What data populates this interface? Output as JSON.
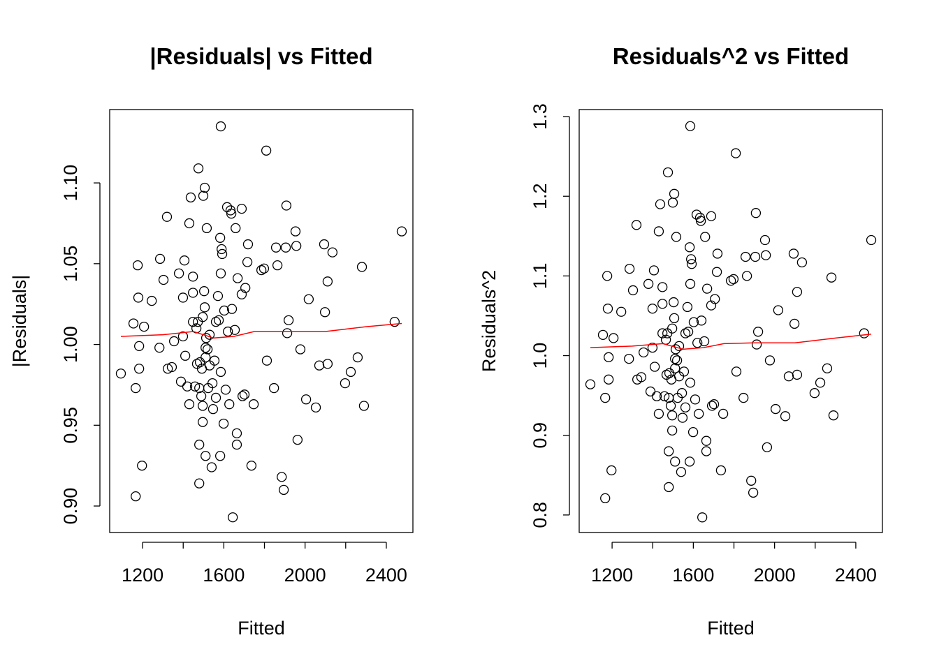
{
  "chart_data": [
    {
      "type": "scatter",
      "title": "|Residuals| vs Fitted",
      "xlabel": "Fitted",
      "ylabel": "|Residuals|",
      "point_color": "#000000",
      "x": [
        1093,
        1155,
        1166,
        1176,
        1183,
        1179,
        1183,
        1197,
        1207,
        1166,
        1245,
        1283,
        1286,
        1303,
        1320,
        1324,
        1344,
        1355,
        1379,
        1389,
        1399,
        1399,
        1406,
        1410,
        1420,
        1430,
        1437,
        1430,
        1448,
        1448,
        1448,
        1458,
        1465,
        1468,
        1472,
        1475,
        1479,
        1479,
        1479,
        1482,
        1489,
        1492,
        1496,
        1496,
        1496,
        1499,
        1503,
        1506,
        1506,
        1510,
        1510,
        1510,
        1513,
        1516,
        1520,
        1523,
        1530,
        1530,
        1540,
        1544,
        1547,
        1554,
        1561,
        1561,
        1571,
        1575,
        1582,
        1582,
        1585,
        1585,
        1585,
        1589,
        1592,
        1599,
        1602,
        1609,
        1616,
        1620,
        1627,
        1633,
        1637,
        1640,
        1644,
        1654,
        1658,
        1664,
        1664,
        1668,
        1688,
        1688,
        1692,
        1702,
        1706,
        1716,
        1719,
        1736,
        1747,
        1785,
        1798,
        1809,
        1812,
        1847,
        1857,
        1864,
        1885,
        1895,
        1905,
        1908,
        1912,
        1919,
        1957,
        1963,
        1953,
        1977,
        2005,
        2018,
        2053,
        2070,
        2094,
        2098,
        2111,
        2111,
        2135,
        2197,
        2225,
        2259,
        2280,
        2290,
        2441,
        2476
      ],
      "y": [
        0.982,
        1.013,
        0.973,
        1.049,
        0.985,
        1.029,
        0.999,
        0.925,
        1.011,
        0.906,
        1.027,
        0.998,
        1.053,
        1.04,
        1.079,
        0.985,
        0.986,
        1.002,
        1.044,
        0.977,
        1.005,
        1.029,
        1.052,
        0.993,
        0.974,
        0.963,
        1.091,
        1.075,
        1.014,
        1.042,
        1.032,
        0.974,
        1.01,
        0.988,
        1.014,
        1.109,
        0.938,
        0.914,
        0.973,
        0.989,
        0.968,
        0.985,
        0.952,
        1.017,
        0.962,
        1.092,
        1.033,
        1.097,
        1.023,
        0.931,
        0.998,
        0.992,
        1.004,
        1.072,
        0.997,
        0.973,
        1.006,
        0.987,
        0.924,
        0.976,
        0.96,
        0.99,
        0.967,
        1.014,
        1.03,
        1.015,
        0.931,
        1.066,
        1.044,
        0.983,
        1.135,
        1.059,
        1.056,
        0.951,
        1.021,
        0.972,
        1.085,
        1.008,
        0.963,
        1.083,
        1.081,
        1.022,
        0.893,
        1.009,
        1.072,
        0.945,
        0.938,
        1.041,
        1.084,
        1.031,
        0.968,
        0.969,
        1.035,
        1.051,
        1.062,
        0.925,
        0.963,
        1.046,
        1.047,
        1.12,
        0.99,
        0.973,
        1.06,
        1.049,
        0.918,
        0.91,
        1.06,
        1.086,
        1.007,
        1.015,
        1.061,
        0.941,
        1.07,
        0.997,
        0.966,
        1.028,
        0.961,
        0.987,
        1.062,
        1.02,
        1.039,
        0.988,
        1.057,
        0.976,
        0.983,
        0.992,
        1.048,
        0.962,
        1.014,
        1.07
      ],
      "smooth": {
        "color": "#ff0000",
        "x": [
          1093,
          1300,
          1450,
          1550,
          1650,
          1750,
          1900,
          2100,
          2300,
          2476
        ],
        "y": [
          1.005,
          1.006,
          1.008,
          1.004,
          1.005,
          1.008,
          1.008,
          1.008,
          1.011,
          1.013
        ]
      },
      "xlim": [
        1038,
        2531
      ],
      "ylim": [
        0.8836,
        1.1454
      ],
      "xticks": [
        1200,
        {
          "value": 1400,
          "label": null
        },
        1600,
        {
          "value": 1800,
          "label": null
        },
        2000,
        {
          "value": 2200,
          "label": null
        },
        2400
      ],
      "yticks": [
        {
          "value": 0.9,
          "label": "0.90"
        },
        0.95,
        {
          "value": 1.0,
          "label": "1.00"
        },
        1.05,
        {
          "value": 1.1,
          "label": "1.10"
        }
      ]
    },
    {
      "type": "scatter",
      "title": "Residuals^2 vs Fitted",
      "xlabel": "Fitted",
      "ylabel": "Residuals^2",
      "point_color": "#000000",
      "x": [
        1093,
        1155,
        1166,
        1176,
        1183,
        1179,
        1183,
        1197,
        1207,
        1166,
        1245,
        1283,
        1286,
        1303,
        1320,
        1324,
        1344,
        1355,
        1379,
        1389,
        1399,
        1399,
        1406,
        1410,
        1420,
        1430,
        1437,
        1430,
        1448,
        1448,
        1448,
        1458,
        1465,
        1468,
        1472,
        1475,
        1479,
        1479,
        1479,
        1482,
        1489,
        1492,
        1496,
        1496,
        1496,
        1499,
        1503,
        1506,
        1506,
        1510,
        1510,
        1510,
        1513,
        1516,
        1520,
        1523,
        1530,
        1530,
        1540,
        1544,
        1547,
        1554,
        1561,
        1561,
        1571,
        1575,
        1582,
        1582,
        1585,
        1585,
        1585,
        1589,
        1592,
        1599,
        1602,
        1609,
        1616,
        1620,
        1627,
        1633,
        1637,
        1640,
        1644,
        1654,
        1658,
        1664,
        1664,
        1668,
        1688,
        1688,
        1692,
        1702,
        1706,
        1716,
        1719,
        1736,
        1747,
        1785,
        1798,
        1809,
        1812,
        1847,
        1857,
        1864,
        1885,
        1895,
        1905,
        1908,
        1912,
        1919,
        1957,
        1963,
        1953,
        1977,
        2005,
        2018,
        2053,
        2070,
        2094,
        2098,
        2111,
        2111,
        2135,
        2197,
        2225,
        2259,
        2280,
        2290,
        2441,
        2476
      ],
      "y": [
        0.964,
        1.026,
        0.947,
        1.1,
        0.97,
        1.059,
        0.998,
        0.856,
        1.022,
        0.821,
        1.055,
        0.996,
        1.109,
        1.082,
        1.164,
        0.97,
        0.973,
        1.004,
        1.09,
        0.955,
        1.01,
        1.059,
        1.107,
        0.986,
        0.949,
        0.927,
        1.19,
        1.156,
        1.028,
        1.086,
        1.065,
        0.949,
        1.02,
        0.976,
        1.028,
        1.23,
        0.88,
        0.835,
        0.947,
        0.978,
        0.937,
        0.97,
        0.906,
        1.034,
        0.925,
        1.192,
        1.067,
        1.203,
        1.047,
        0.867,
        0.996,
        0.984,
        1.008,
        1.149,
        0.994,
        0.947,
        1.012,
        0.974,
        0.854,
        0.953,
        0.922,
        0.98,
        0.935,
        1.028,
        1.061,
        1.03,
        0.867,
        1.136,
        1.09,
        0.966,
        1.288,
        1.121,
        1.115,
        0.904,
        1.042,
        0.945,
        1.177,
        1.016,
        0.927,
        1.173,
        1.169,
        1.044,
        0.797,
        1.018,
        1.149,
        0.893,
        0.88,
        1.084,
        1.175,
        1.063,
        0.937,
        0.939,
        1.071,
        1.105,
        1.128,
        0.856,
        0.927,
        1.094,
        1.096,
        1.254,
        0.98,
        0.947,
        1.124,
        1.1,
        0.843,
        0.828,
        1.124,
        1.179,
        1.014,
        1.03,
        1.126,
        0.885,
        1.145,
        0.994,
        0.933,
        1.057,
        0.924,
        0.974,
        1.128,
        1.04,
        1.08,
        0.976,
        1.117,
        0.953,
        0.966,
        0.984,
        1.098,
        0.925,
        1.028,
        1.145
      ],
      "smooth": {
        "color": "#ff0000",
        "x": [
          1093,
          1300,
          1450,
          1550,
          1650,
          1750,
          1900,
          2100,
          2300,
          2476
        ],
        "y": [
          1.01,
          1.012,
          1.015,
          1.008,
          1.01,
          1.015,
          1.016,
          1.016,
          1.022,
          1.027
        ]
      },
      "xlim": [
        1038,
        2531
      ],
      "ylim": [
        0.778,
        1.3088
      ],
      "xticks": [
        1200,
        {
          "value": 1400,
          "label": null
        },
        1600,
        {
          "value": 1800,
          "label": null
        },
        2000,
        {
          "value": 2200,
          "label": null
        },
        2400
      ],
      "yticks": [
        0.8,
        0.9,
        {
          "value": 1.0,
          "label": "1.0"
        },
        1.1,
        1.2,
        1.3
      ]
    }
  ]
}
